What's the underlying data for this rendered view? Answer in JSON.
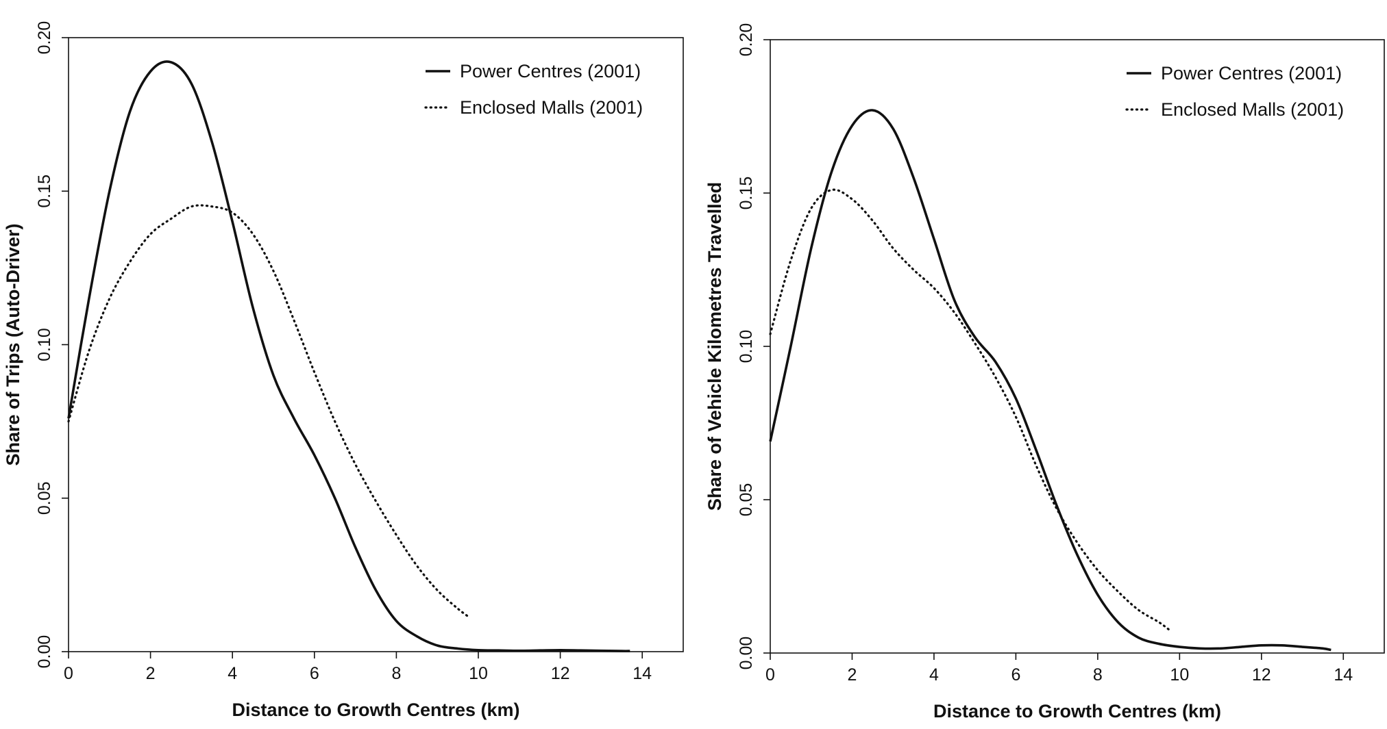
{
  "chart_data": [
    {
      "type": "line",
      "title": "",
      "xlabel": "Distance to Growth Centres (km)",
      "ylabel": "Share of Trips (Auto-Driver)",
      "xlim": [
        0,
        15
      ],
      "ylim": [
        0,
        0.2
      ],
      "xticks": [
        "0",
        "2",
        "4",
        "6",
        "8",
        "10",
        "12",
        "14"
      ],
      "yticks": [
        "0.00",
        "0.05",
        "0.10",
        "0.15",
        "0.20"
      ],
      "legend_position": "top-right",
      "series": [
        {
          "name": "Power Centres (2001)",
          "style": "solid",
          "x": [
            0,
            0.5,
            1,
            1.5,
            2,
            2.5,
            3,
            3.5,
            4,
            4.5,
            5,
            5.5,
            6,
            6.5,
            7,
            7.5,
            8,
            8.5,
            9,
            9.5,
            10,
            10.5,
            11,
            11.5,
            12,
            12.5,
            13,
            13.5,
            13.7
          ],
          "values": [
            0.076,
            0.115,
            0.15,
            0.176,
            0.189,
            0.192,
            0.185,
            0.166,
            0.14,
            0.112,
            0.09,
            0.076,
            0.064,
            0.05,
            0.034,
            0.02,
            0.01,
            0.005,
            0.002,
            0.001,
            0.0005,
            0.0004,
            0.0003,
            0.0004,
            0.0005,
            0.0004,
            0.0003,
            0.0002,
            0.0002
          ]
        },
        {
          "name": "Enclosed Malls (2001)",
          "style": "dotted",
          "x": [
            0,
            0.5,
            1,
            1.5,
            2,
            2.5,
            3,
            3.5,
            4,
            4.5,
            5,
            5.5,
            6,
            6.5,
            7,
            7.5,
            8,
            8.5,
            9,
            9.5,
            9.8
          ],
          "values": [
            0.075,
            0.098,
            0.115,
            0.127,
            0.136,
            0.141,
            0.145,
            0.145,
            0.143,
            0.136,
            0.124,
            0.108,
            0.091,
            0.075,
            0.061,
            0.049,
            0.038,
            0.028,
            0.02,
            0.014,
            0.011
          ]
        }
      ]
    },
    {
      "type": "line",
      "title": "",
      "xlabel": "Distance to Growth Centres (km)",
      "ylabel": "Share of Vehicle Kilometres Travelled",
      "xlim": [
        0,
        15
      ],
      "ylim": [
        0,
        0.2
      ],
      "xticks": [
        "0",
        "2",
        "4",
        "6",
        "8",
        "10",
        "12",
        "14"
      ],
      "yticks": [
        "0.00",
        "0.05",
        "0.10",
        "0.15",
        "0.20"
      ],
      "legend_position": "top-right",
      "series": [
        {
          "name": "Power Centres (2001)",
          "style": "solid",
          "x": [
            0,
            0.5,
            1,
            1.5,
            2,
            2.5,
            3,
            3.5,
            4,
            4.5,
            5,
            5.5,
            6,
            6.5,
            7,
            7.5,
            8,
            8.5,
            9,
            9.5,
            10,
            10.5,
            11,
            11.5,
            12,
            12.5,
            13,
            13.5,
            13.7
          ],
          "values": [
            0.069,
            0.1,
            0.132,
            0.157,
            0.172,
            0.177,
            0.171,
            0.155,
            0.135,
            0.115,
            0.103,
            0.095,
            0.083,
            0.066,
            0.048,
            0.032,
            0.019,
            0.01,
            0.005,
            0.003,
            0.002,
            0.0015,
            0.0015,
            0.002,
            0.0025,
            0.0025,
            0.002,
            0.0015,
            0.001
          ]
        },
        {
          "name": "Enclosed Malls (2001)",
          "style": "dotted",
          "x": [
            0,
            0.5,
            1,
            1.5,
            2,
            2.5,
            3,
            3.5,
            4,
            4.5,
            5,
            5.5,
            6,
            6.5,
            7,
            7.5,
            8,
            8.5,
            9,
            9.5,
            9.8
          ],
          "values": [
            0.104,
            0.128,
            0.145,
            0.151,
            0.148,
            0.141,
            0.132,
            0.125,
            0.119,
            0.111,
            0.101,
            0.09,
            0.077,
            0.061,
            0.047,
            0.036,
            0.027,
            0.02,
            0.014,
            0.01,
            0.007
          ]
        }
      ]
    }
  ]
}
